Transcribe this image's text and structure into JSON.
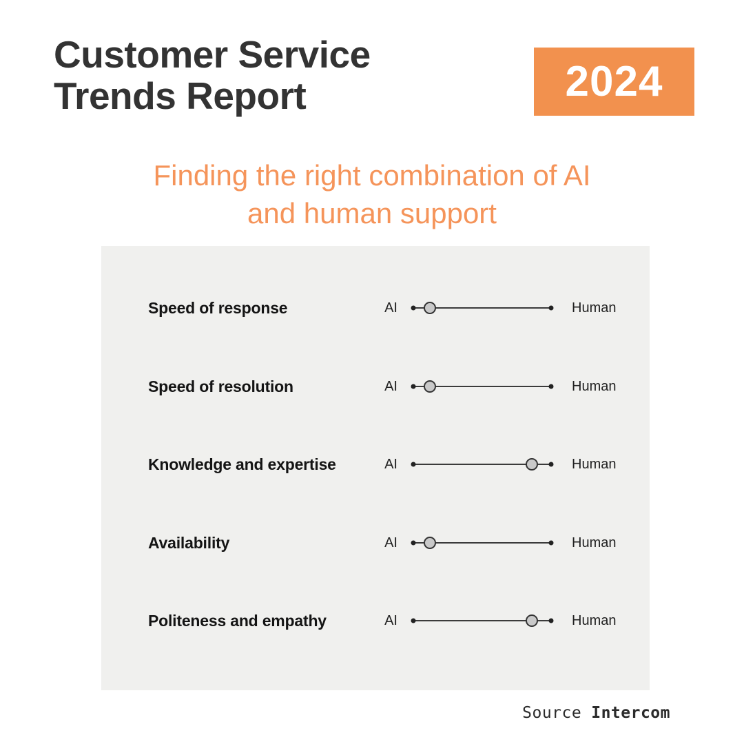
{
  "header": {
    "title_line1": "Customer Service",
    "title_line2": "Trends Report",
    "year_badge": "2024"
  },
  "subtitle": {
    "line1": "Finding the right combination of AI",
    "line2": "and human support"
  },
  "chart_data": {
    "type": "scatter",
    "title": "Finding the right combination of AI and human support",
    "categories": [
      "Speed of response",
      "Speed of resolution",
      "Knowledge and expertise",
      "Availability",
      "Politeness and empathy"
    ],
    "values": [
      0.12,
      0.12,
      0.86,
      0.12,
      0.86
    ],
    "scale": {
      "left_label": "AI",
      "right_label": "Human",
      "range": [
        0,
        1
      ]
    },
    "legend_position": "none",
    "grid": false,
    "notes": "Each row is a slider: dot position between AI (0) and Human (1)"
  },
  "rows": [
    {
      "label": "Speed of response",
      "left": "AI",
      "right": "Human",
      "value": 0.12
    },
    {
      "label": "Speed of resolution",
      "left": "AI",
      "right": "Human",
      "value": 0.12
    },
    {
      "label": "Knowledge and expertise",
      "left": "AI",
      "right": "Human",
      "value": 0.86
    },
    {
      "label": "Availability",
      "left": "AI",
      "right": "Human",
      "value": 0.12
    },
    {
      "label": "Politeness and empathy",
      "left": "AI",
      "right": "Human",
      "value": 0.86
    }
  ],
  "footer": {
    "source_label": "Source",
    "source_name": "Intercom"
  },
  "colors": {
    "accent_orange": "#F2914E",
    "subtitle_orange": "#F5945A",
    "title_text": "#333333",
    "panel_bg": "#F0F0EE",
    "track": "#3B3B3B",
    "knob_fill": "#C9C9C9",
    "knob_border": "#333333",
    "source_text": "#2B2B2B"
  }
}
